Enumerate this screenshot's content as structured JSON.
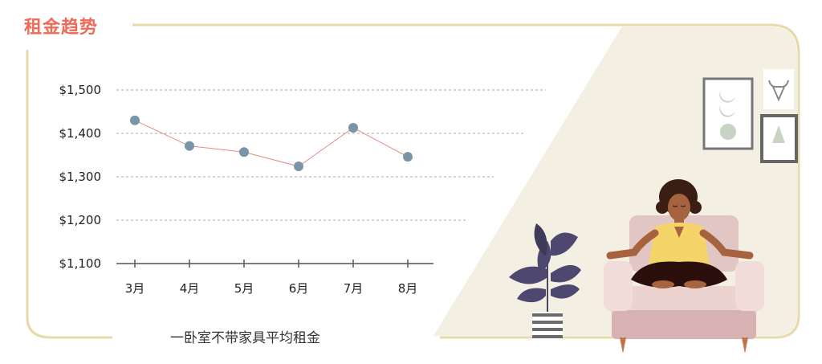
{
  "header": {
    "title": "租金趋势"
  },
  "chart_data": {
    "type": "line",
    "title": "租金趋势",
    "xlabel": "一卧室不带家具平均租金",
    "ylabel": "",
    "categories": [
      "3月",
      "4月",
      "5月",
      "6月",
      "7月",
      "8月"
    ],
    "series": [
      {
        "name": "",
        "values": [
          1430,
          1371,
          1357,
          1324,
          1413,
          1346
        ]
      }
    ],
    "ylim": [
      1100,
      1500
    ],
    "yticks": [
      1100,
      1200,
      1300,
      1400,
      1500
    ],
    "ytick_labels": [
      "$1,100",
      "$1,200",
      "$1,300",
      "$1,400",
      "$1,500"
    ],
    "grid": true,
    "legend": "none"
  },
  "colors": {
    "title": "#ef6a57",
    "frame": "#e8d9a8",
    "marker": "#7896a8",
    "line": "#e98880",
    "grid": "#aaaaaa",
    "axis": "#555555",
    "panel": "#f4efe3"
  },
  "illustration": {
    "figure": "meditating-woman-icon",
    "plant": "potted-plant-icon",
    "frames": [
      "moon-phases-art-icon",
      "bull-skull-art-icon",
      "triangle-art-icon"
    ]
  }
}
